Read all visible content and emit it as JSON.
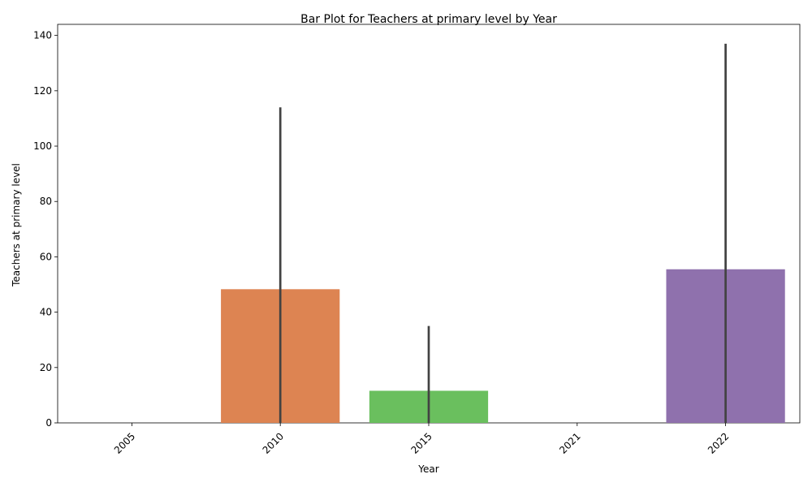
{
  "chart_data": {
    "type": "bar",
    "title": "Bar Plot for Teachers at primary level by Year",
    "xlabel": "Year",
    "ylabel": "Teachers at primary level",
    "categories": [
      "2005",
      "2010",
      "2015",
      "2021",
      "2022"
    ],
    "values": [
      0,
      48.3,
      11.6,
      0,
      55.5
    ],
    "error_low": [
      0,
      0,
      0,
      0,
      0
    ],
    "error_high": [
      0,
      114,
      35,
      0,
      137
    ],
    "colors": [
      "#4c72b0",
      "#dd8452",
      "#6abf5e",
      "#c44e52",
      "#8f71ad"
    ],
    "errorbar_color": "#424242",
    "ylim": [
      0,
      144
    ],
    "yticks": [
      0,
      20,
      40,
      60,
      80,
      100,
      120,
      140
    ],
    "grid": false,
    "legend": "none"
  }
}
